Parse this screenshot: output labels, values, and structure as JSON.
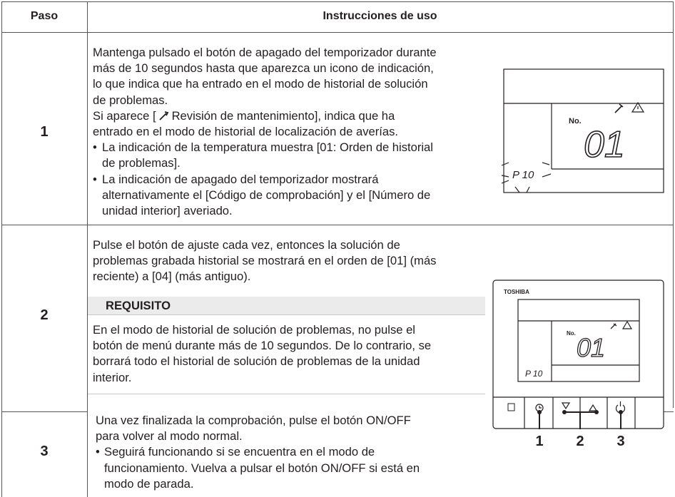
{
  "table": {
    "header": {
      "step": "Paso",
      "instructions": "Instrucciones de uso"
    },
    "rows": [
      {
        "step": "1",
        "blocks": [
          {
            "lines": [
              "Mantenga pulsado el botón de apagado del temporizador durante",
              "más de 10 segundos hasta que aparezca un icono de indicación,",
              "lo que indica que ha entrado en el modo de historial de solución",
              "de problemas."
            ]
          },
          {
            "lines": [
              {
                "before": "Si aparece [",
                "after": "Revisión de mantenimiento], indica que ha"
              },
              "entrado en el modo de historial de localización de averías."
            ]
          },
          {
            "bullet": "•",
            "lines": [
              "La indicación de la temperatura muestra [01: Orden de historial",
              "de problemas]."
            ]
          },
          {
            "bullet": "•",
            "lines": [
              "La indicación de apagado del temporizador mostrará",
              "alternativamente el [Código de comprobación] y el [Número de",
              "unidad interior] averiado."
            ]
          }
        ]
      },
      {
        "step": "2",
        "blocks": [
          {
            "lines": [
              "Pulse el botón de ajuste cada vez, entonces la solución de",
              "problemas grabada historial se mostrará en el orden de [01] (más",
              "reciente) a [04] (más antiguo)."
            ]
          }
        ],
        "requisito": {
          "title": "REQUISITO",
          "lines": [
            "En el modo de historial de solución de problemas, no pulse el",
            "botón de menú durante más de 10 segundos. De lo contrario, se",
            "borrará todo el historial de solución de problemas de la unidad",
            "interior."
          ]
        }
      },
      {
        "step": "3",
        "blocks": [
          {
            "lines": [
              "Una vez finalizada la comprobación, pulse el botón ON/OFF",
              "para volver al modo normal."
            ]
          },
          {
            "bullet": "•",
            "lines": [
              "Seguirá funcionando si se encuentra en el modo de",
              "funcionamiento. Vuelva a pulsar el botón ON/OFF si está en",
              "modo de parada."
            ]
          }
        ]
      }
    ]
  },
  "figures": {
    "display": {
      "number_label": "No.",
      "number": "01",
      "code": "P 10"
    },
    "remote": {
      "brand": "TOSHIBA",
      "number_label": "No.",
      "number": "01",
      "code": "P 10",
      "callouts": [
        "1",
        "2",
        "3"
      ]
    }
  }
}
